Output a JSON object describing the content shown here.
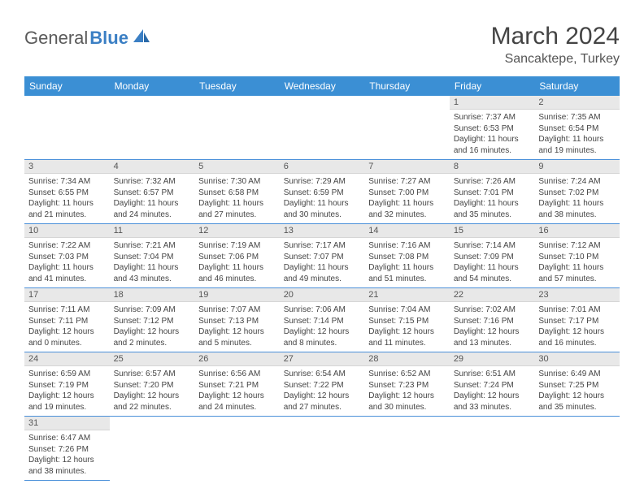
{
  "logo": {
    "text1": "General",
    "text2": "Blue"
  },
  "title": "March 2024",
  "location": "Sancaktepe, Turkey",
  "weekdays": [
    "Sunday",
    "Monday",
    "Tuesday",
    "Wednesday",
    "Thursday",
    "Friday",
    "Saturday"
  ],
  "colors": {
    "header_bg": "#3b8fd4",
    "header_text": "#ffffff",
    "row_border": "#4a90d9",
    "daynum_bg": "#e8e8e8",
    "logo_gray": "#5a5a5a",
    "logo_blue": "#3b7fc4"
  },
  "typography": {
    "title_fontsize": 30,
    "location_fontsize": 16,
    "weekday_fontsize": 12,
    "daynum_fontsize": 11,
    "body_fontsize": 10
  },
  "days": {
    "1": {
      "sunrise": "7:37 AM",
      "sunset": "6:53 PM",
      "daylight": "11 hours and 16 minutes."
    },
    "2": {
      "sunrise": "7:35 AM",
      "sunset": "6:54 PM",
      "daylight": "11 hours and 19 minutes."
    },
    "3": {
      "sunrise": "7:34 AM",
      "sunset": "6:55 PM",
      "daylight": "11 hours and 21 minutes."
    },
    "4": {
      "sunrise": "7:32 AM",
      "sunset": "6:57 PM",
      "daylight": "11 hours and 24 minutes."
    },
    "5": {
      "sunrise": "7:30 AM",
      "sunset": "6:58 PM",
      "daylight": "11 hours and 27 minutes."
    },
    "6": {
      "sunrise": "7:29 AM",
      "sunset": "6:59 PM",
      "daylight": "11 hours and 30 minutes."
    },
    "7": {
      "sunrise": "7:27 AM",
      "sunset": "7:00 PM",
      "daylight": "11 hours and 32 minutes."
    },
    "8": {
      "sunrise": "7:26 AM",
      "sunset": "7:01 PM",
      "daylight": "11 hours and 35 minutes."
    },
    "9": {
      "sunrise": "7:24 AM",
      "sunset": "7:02 PM",
      "daylight": "11 hours and 38 minutes."
    },
    "10": {
      "sunrise": "7:22 AM",
      "sunset": "7:03 PM",
      "daylight": "11 hours and 41 minutes."
    },
    "11": {
      "sunrise": "7:21 AM",
      "sunset": "7:04 PM",
      "daylight": "11 hours and 43 minutes."
    },
    "12": {
      "sunrise": "7:19 AM",
      "sunset": "7:06 PM",
      "daylight": "11 hours and 46 minutes."
    },
    "13": {
      "sunrise": "7:17 AM",
      "sunset": "7:07 PM",
      "daylight": "11 hours and 49 minutes."
    },
    "14": {
      "sunrise": "7:16 AM",
      "sunset": "7:08 PM",
      "daylight": "11 hours and 51 minutes."
    },
    "15": {
      "sunrise": "7:14 AM",
      "sunset": "7:09 PM",
      "daylight": "11 hours and 54 minutes."
    },
    "16": {
      "sunrise": "7:12 AM",
      "sunset": "7:10 PM",
      "daylight": "11 hours and 57 minutes."
    },
    "17": {
      "sunrise": "7:11 AM",
      "sunset": "7:11 PM",
      "daylight": "12 hours and 0 minutes."
    },
    "18": {
      "sunrise": "7:09 AM",
      "sunset": "7:12 PM",
      "daylight": "12 hours and 2 minutes."
    },
    "19": {
      "sunrise": "7:07 AM",
      "sunset": "7:13 PM",
      "daylight": "12 hours and 5 minutes."
    },
    "20": {
      "sunrise": "7:06 AM",
      "sunset": "7:14 PM",
      "daylight": "12 hours and 8 minutes."
    },
    "21": {
      "sunrise": "7:04 AM",
      "sunset": "7:15 PM",
      "daylight": "12 hours and 11 minutes."
    },
    "22": {
      "sunrise": "7:02 AM",
      "sunset": "7:16 PM",
      "daylight": "12 hours and 13 minutes."
    },
    "23": {
      "sunrise": "7:01 AM",
      "sunset": "7:17 PM",
      "daylight": "12 hours and 16 minutes."
    },
    "24": {
      "sunrise": "6:59 AM",
      "sunset": "7:19 PM",
      "daylight": "12 hours and 19 minutes."
    },
    "25": {
      "sunrise": "6:57 AM",
      "sunset": "7:20 PM",
      "daylight": "12 hours and 22 minutes."
    },
    "26": {
      "sunrise": "6:56 AM",
      "sunset": "7:21 PM",
      "daylight": "12 hours and 24 minutes."
    },
    "27": {
      "sunrise": "6:54 AM",
      "sunset": "7:22 PM",
      "daylight": "12 hours and 27 minutes."
    },
    "28": {
      "sunrise": "6:52 AM",
      "sunset": "7:23 PM",
      "daylight": "12 hours and 30 minutes."
    },
    "29": {
      "sunrise": "6:51 AM",
      "sunset": "7:24 PM",
      "daylight": "12 hours and 33 minutes."
    },
    "30": {
      "sunrise": "6:49 AM",
      "sunset": "7:25 PM",
      "daylight": "12 hours and 35 minutes."
    },
    "31": {
      "sunrise": "6:47 AM",
      "sunset": "7:26 PM",
      "daylight": "12 hours and 38 minutes."
    }
  },
  "labels": {
    "sunrise": "Sunrise:",
    "sunset": "Sunset:",
    "daylight": "Daylight:"
  },
  "grid": {
    "first_day_column": 5,
    "num_days": 31,
    "rows": 6
  }
}
